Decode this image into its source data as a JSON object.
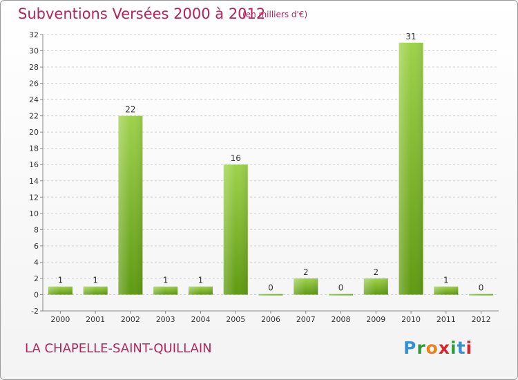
{
  "header": {
    "title": "Subventions Versées 2000 à 2012",
    "subtitle": "(en milliers d'€)"
  },
  "footer": {
    "commune": "LA CHAPELLE-SAINT-QUILLAIN",
    "logo_text": "Proxiti"
  },
  "colors": {
    "title": "#b3245a",
    "bar_light": "#9ed24c",
    "bar_dark": "#5f9a12",
    "grid": "#cfcfcf"
  },
  "chart_data": {
    "type": "bar",
    "title": "Subventions Versées 2000 à 2012",
    "subtitle": "(en milliers d'€)",
    "categories": [
      "2000",
      "2001",
      "2002",
      "2003",
      "2004",
      "2005",
      "2006",
      "2007",
      "2008",
      "2009",
      "2010",
      "2011",
      "2012"
    ],
    "values": [
      1,
      1,
      22,
      1,
      1,
      16,
      0,
      2,
      0,
      2,
      31,
      1,
      0
    ],
    "ylim": [
      -2,
      32
    ],
    "yticks": [
      -2,
      0,
      2,
      4,
      6,
      8,
      10,
      12,
      14,
      16,
      18,
      20,
      22,
      24,
      26,
      28,
      30,
      32
    ],
    "grid": "horizontal dashed",
    "xlabel": "",
    "ylabel": ""
  }
}
